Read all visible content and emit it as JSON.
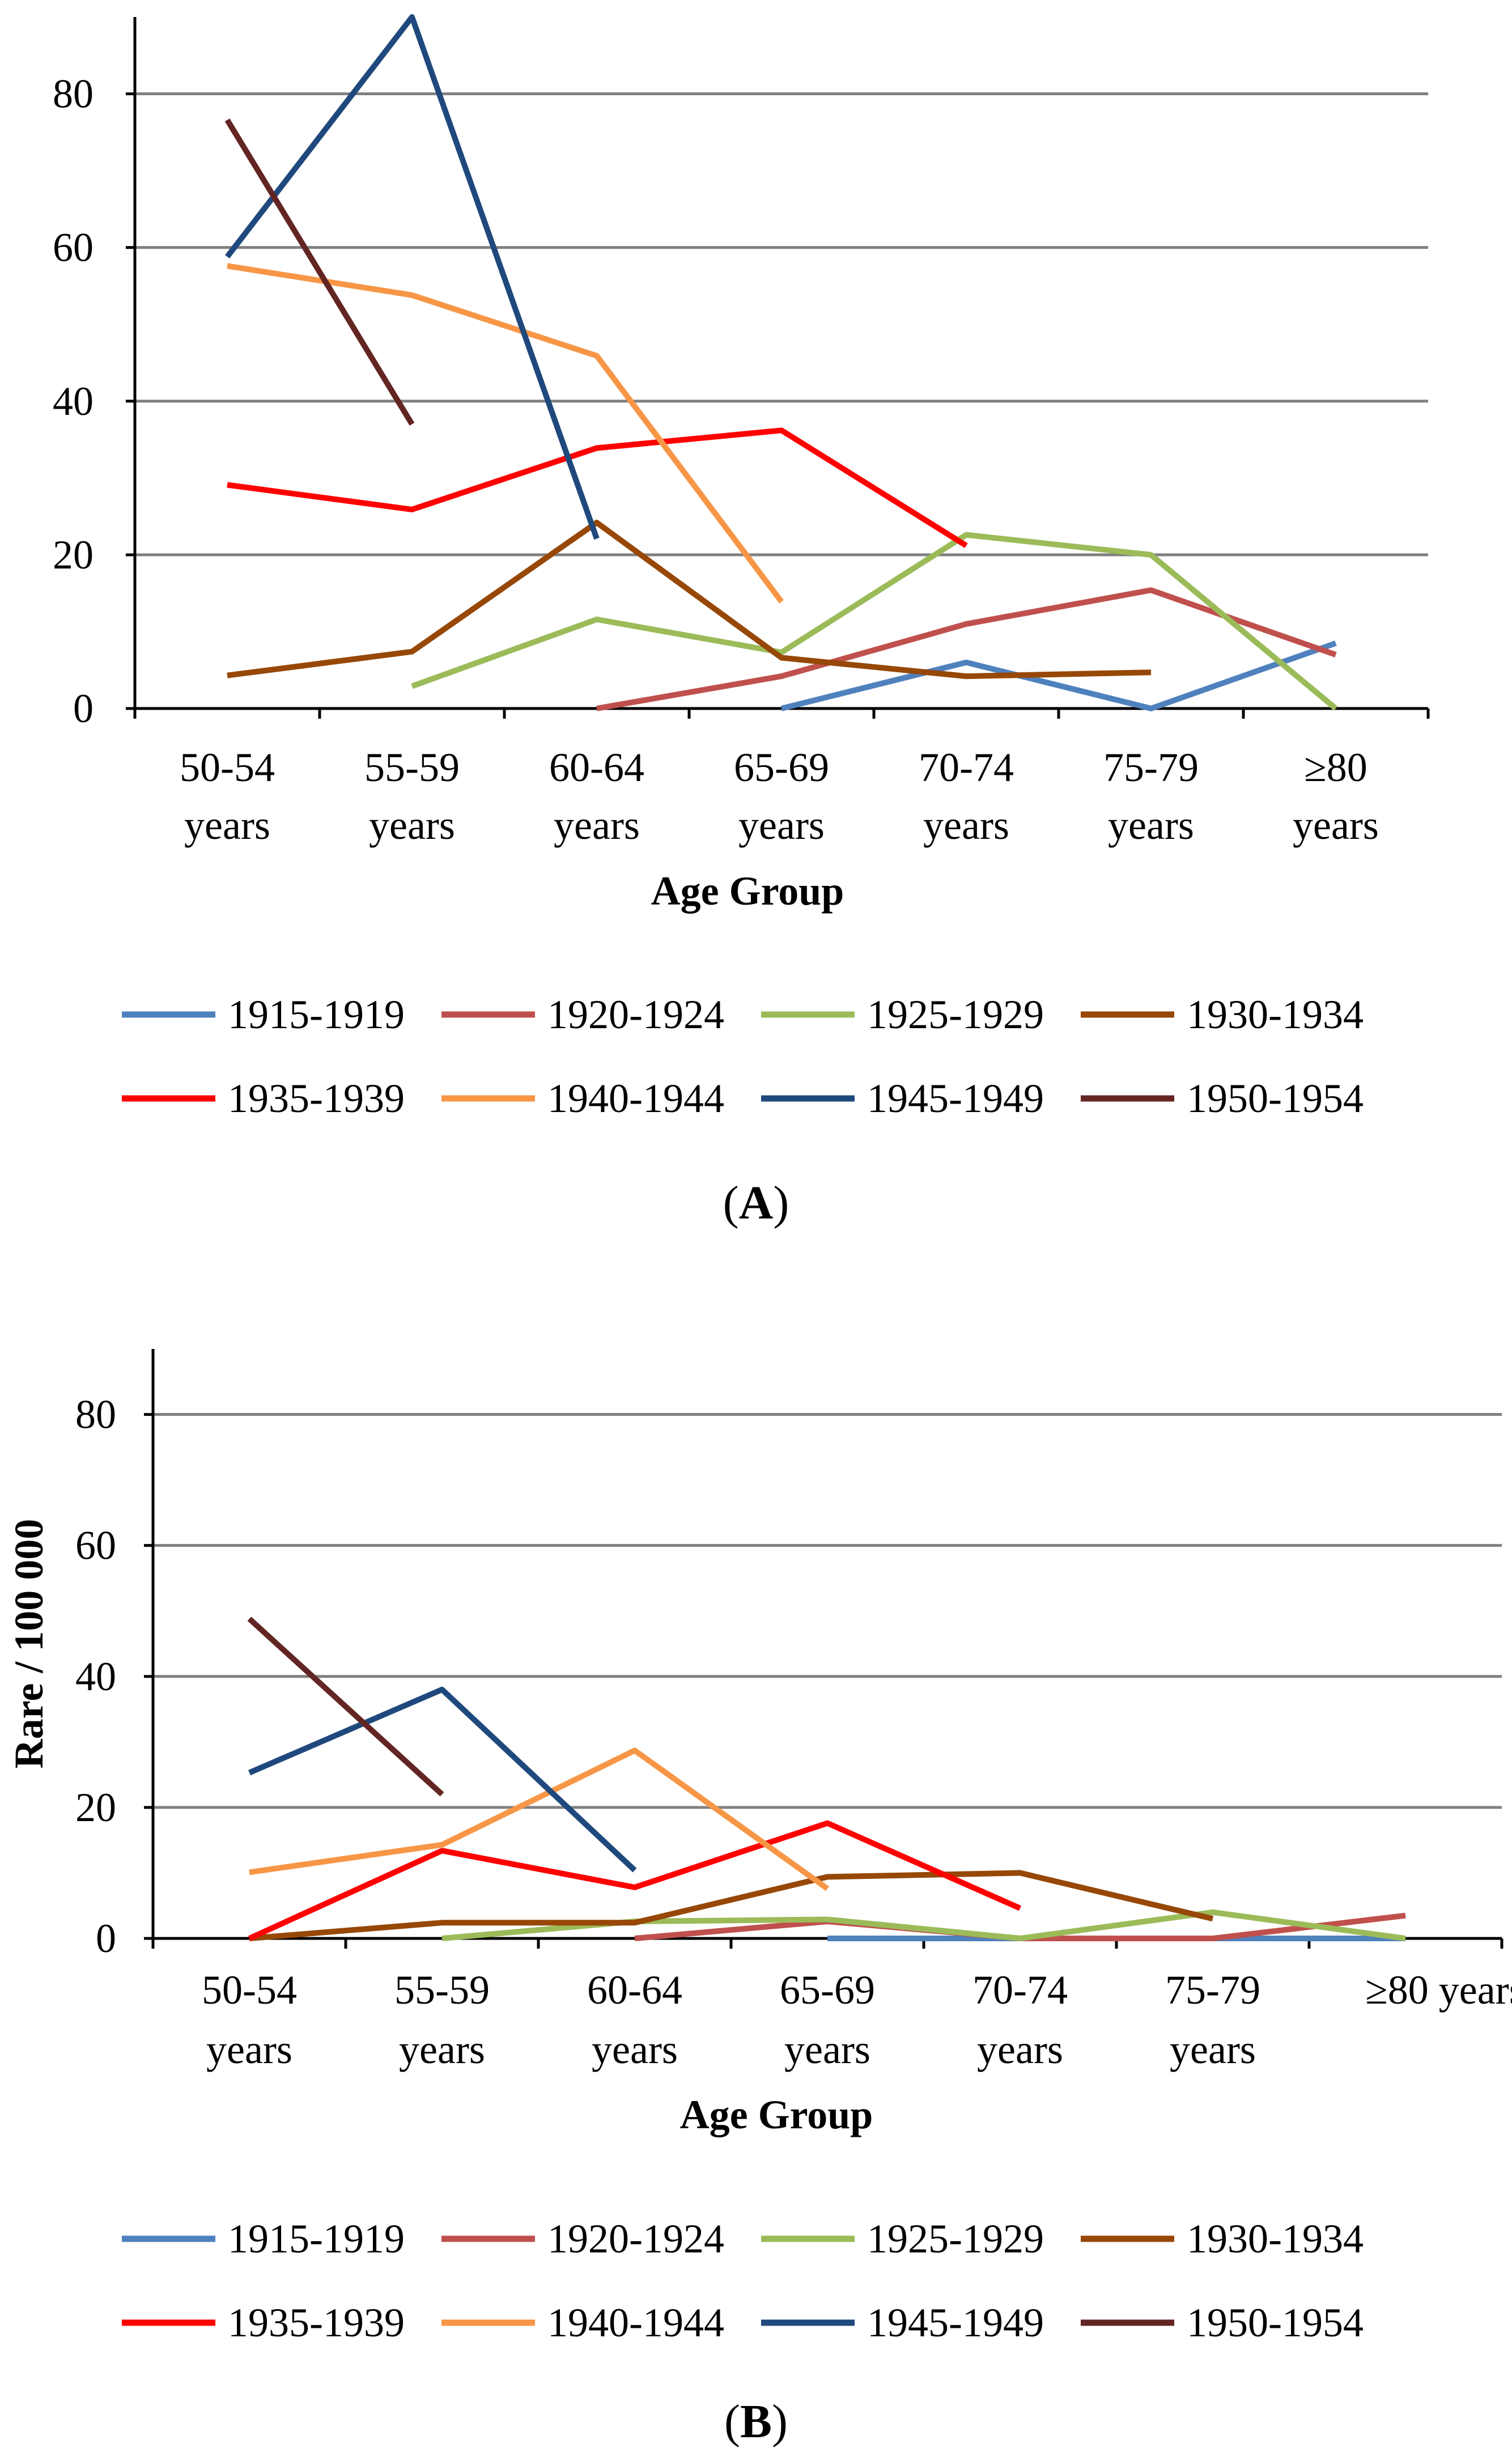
{
  "colors": {
    "1915-1919": "#4f81bd",
    "1920-1924": "#c0504d",
    "1925-1929": "#9bbb59",
    "1930-1934": "#974706",
    "1935-1939": "#ff0000",
    "1940-1944": "#f79646",
    "1945-1949": "#1f497d",
    "1950-1954": "#632523",
    "gridline": "#808080",
    "axis": "#000000"
  },
  "chart_data": [
    {
      "type": "line",
      "panel_prefix": "(",
      "panel_letter": "A",
      "panel_suffix": ")",
      "xlabel": "Age Group",
      "ylabel": "",
      "ylim": [
        0,
        90
      ],
      "yticks": [
        "0",
        "20",
        "40",
        "60",
        "80"
      ],
      "ytick_values": [
        0,
        20,
        40,
        60,
        80
      ],
      "grid": true,
      "categories": [
        {
          "line1": "50-54",
          "line2": "years"
        },
        {
          "line1": "55-59",
          "line2": "years"
        },
        {
          "line1": "60-64",
          "line2": "years"
        },
        {
          "line1": "65-69",
          "line2": "years"
        },
        {
          "line1": "70-74",
          "line2": "years"
        },
        {
          "line1": "75-79",
          "line2": "years"
        },
        {
          "line1": "≥80",
          "line2": "years"
        }
      ],
      "series": [
        {
          "name": "1915-1919",
          "values": [
            null,
            null,
            null,
            0.0,
            6.0,
            0.0,
            8.5
          ]
        },
        {
          "name": "1920-1924",
          "values": [
            null,
            null,
            0.0,
            4.2,
            11.0,
            15.4,
            7.0
          ]
        },
        {
          "name": "1925-1929",
          "values": [
            null,
            2.9,
            11.6,
            7.3,
            22.6,
            20.0,
            0.0
          ]
        },
        {
          "name": "1930-1934",
          "values": [
            4.3,
            7.4,
            24.2,
            6.6,
            4.2,
            4.7,
            null
          ]
        },
        {
          "name": "1935-1939",
          "values": [
            29.1,
            25.9,
            33.9,
            36.2,
            21.2,
            null,
            null
          ]
        },
        {
          "name": "1940-1944",
          "values": [
            57.6,
            53.8,
            45.9,
            13.9,
            null,
            null,
            null
          ]
        },
        {
          "name": "1945-1949",
          "values": [
            58.8,
            90.0,
            22.1,
            null,
            null,
            null,
            null
          ]
        },
        {
          "name": "1950-1954",
          "values": [
            76.6,
            37.0,
            null,
            null,
            null,
            null,
            null
          ]
        }
      ]
    },
    {
      "type": "line",
      "panel_prefix": "(",
      "panel_letter": "B",
      "panel_suffix": ")",
      "xlabel": "Age Group",
      "ylabel": "Rare / 100 000",
      "ylim": [
        0,
        90
      ],
      "yticks": [
        "0",
        "20",
        "40",
        "60",
        "80"
      ],
      "ytick_values": [
        0,
        20,
        40,
        60,
        80
      ],
      "grid": true,
      "categories": [
        {
          "line1": "50-54",
          "line2": "years"
        },
        {
          "line1": "55-59",
          "line2": "years"
        },
        {
          "line1": "60-64",
          "line2": "years"
        },
        {
          "line1": "65-69",
          "line2": "years"
        },
        {
          "line1": "70-74",
          "line2": "years"
        },
        {
          "line1": "75-79",
          "line2": "years"
        },
        {
          "line1": "≥80 years",
          "line2": ""
        }
      ],
      "series": [
        {
          "name": "1915-1919",
          "values": [
            null,
            null,
            null,
            0.0,
            0.0,
            0.0,
            0.0
          ]
        },
        {
          "name": "1920-1924",
          "values": [
            null,
            null,
            0.0,
            2.6,
            0.0,
            0.0,
            3.5
          ]
        },
        {
          "name": "1925-1929",
          "values": [
            null,
            0.0,
            2.6,
            2.9,
            0.0,
            4.0,
            0.0
          ]
        },
        {
          "name": "1930-1934",
          "values": [
            0.0,
            2.4,
            2.4,
            9.4,
            10.0,
            3.0,
            null
          ]
        },
        {
          "name": "1935-1939",
          "values": [
            0.0,
            13.4,
            7.8,
            17.6,
            4.6,
            null,
            null
          ]
        },
        {
          "name": "1940-1944",
          "values": [
            10.1,
            14.3,
            28.7,
            7.6,
            null,
            null,
            null
          ]
        },
        {
          "name": "1945-1949",
          "values": [
            25.3,
            38.0,
            10.4,
            null,
            null,
            null,
            null
          ]
        },
        {
          "name": "1950-1954",
          "values": [
            48.8,
            22.0,
            null,
            null,
            null,
            null,
            null
          ]
        }
      ]
    }
  ],
  "legend": [
    "1915-1919",
    "1920-1924",
    "1925-1929",
    "1930-1934",
    "1935-1939",
    "1940-1944",
    "1945-1949",
    "1950-1954"
  ]
}
